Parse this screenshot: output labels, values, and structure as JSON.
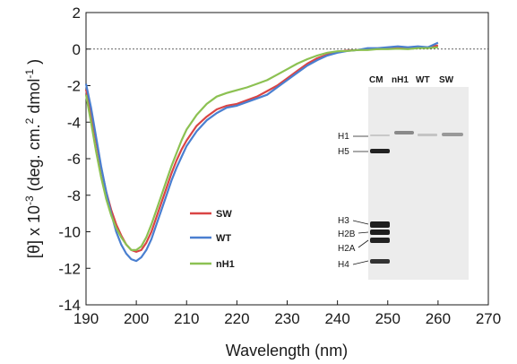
{
  "chart_data": {
    "type": "line",
    "xlabel": "Wavelength (nm)",
    "ylabel": "[θ] x 10",
    "ylabel_sup1": "-3",
    "ylabel_mid": " (deg. cm.",
    "ylabel_sup2": "2",
    "ylabel_mid2": " dmol",
    "ylabel_sup3": "-1",
    "ylabel_end": " )",
    "xlim": [
      190,
      270
    ],
    "ylim": [
      -14,
      2
    ],
    "xticks": [
      "190",
      "200",
      "210",
      "220",
      "230",
      "240",
      "250",
      "260",
      "270"
    ],
    "yticks": [
      "2",
      "0",
      "-2",
      "-4",
      "-6",
      "-8",
      "-10",
      "-12",
      "-14"
    ],
    "zero_line": 0,
    "legend": [
      {
        "name": "SW",
        "color": "#d94545"
      },
      {
        "name": "WT",
        "color": "#4a7fd0"
      },
      {
        "name": "nH1",
        "color": "#8cc152"
      }
    ],
    "series": [
      {
        "name": "SW",
        "color": "#d94545",
        "points": [
          [
            190,
            -2.2
          ],
          [
            191,
            -3.5
          ],
          [
            192,
            -5.0
          ],
          [
            193,
            -6.5
          ],
          [
            194,
            -7.8
          ],
          [
            195,
            -8.8
          ],
          [
            196,
            -9.6
          ],
          [
            197,
            -10.2
          ],
          [
            198,
            -10.7
          ],
          [
            199,
            -11.0
          ],
          [
            200,
            -11.1
          ],
          [
            201,
            -11.0
          ],
          [
            202,
            -10.6
          ],
          [
            203,
            -10.0
          ],
          [
            204,
            -9.2
          ],
          [
            205,
            -8.4
          ],
          [
            206,
            -7.6
          ],
          [
            207,
            -6.8
          ],
          [
            208,
            -6.1
          ],
          [
            209,
            -5.5
          ],
          [
            210,
            -5.0
          ],
          [
            212,
            -4.2
          ],
          [
            214,
            -3.7
          ],
          [
            216,
            -3.3
          ],
          [
            218,
            -3.1
          ],
          [
            220,
            -3.0
          ],
          [
            222,
            -2.8
          ],
          [
            224,
            -2.6
          ],
          [
            226,
            -2.3
          ],
          [
            228,
            -2.0
          ],
          [
            230,
            -1.6
          ],
          [
            232,
            -1.2
          ],
          [
            234,
            -0.8
          ],
          [
            236,
            -0.5
          ],
          [
            238,
            -0.3
          ],
          [
            240,
            -0.15
          ],
          [
            242,
            -0.08
          ],
          [
            244,
            -0.05
          ],
          [
            246,
            0.0
          ],
          [
            248,
            0.0
          ],
          [
            250,
            0.05
          ],
          [
            252,
            0.05
          ],
          [
            254,
            0.08
          ],
          [
            256,
            0.1
          ],
          [
            258,
            0.1
          ],
          [
            260,
            0.2
          ]
        ]
      },
      {
        "name": "WT",
        "color": "#4a7fd0",
        "points": [
          [
            190,
            -1.9
          ],
          [
            191,
            -3.2
          ],
          [
            192,
            -4.8
          ],
          [
            193,
            -6.4
          ],
          [
            194,
            -7.8
          ],
          [
            195,
            -9.0
          ],
          [
            196,
            -10.0
          ],
          [
            197,
            -10.7
          ],
          [
            198,
            -11.2
          ],
          [
            199,
            -11.5
          ],
          [
            200,
            -11.6
          ],
          [
            201,
            -11.4
          ],
          [
            202,
            -11.0
          ],
          [
            203,
            -10.4
          ],
          [
            204,
            -9.6
          ],
          [
            205,
            -8.8
          ],
          [
            206,
            -8.0
          ],
          [
            207,
            -7.2
          ],
          [
            208,
            -6.5
          ],
          [
            209,
            -5.9
          ],
          [
            210,
            -5.3
          ],
          [
            212,
            -4.5
          ],
          [
            214,
            -3.9
          ],
          [
            216,
            -3.5
          ],
          [
            218,
            -3.2
          ],
          [
            220,
            -3.1
          ],
          [
            222,
            -2.9
          ],
          [
            224,
            -2.7
          ],
          [
            226,
            -2.5
          ],
          [
            228,
            -2.1
          ],
          [
            230,
            -1.7
          ],
          [
            232,
            -1.3
          ],
          [
            234,
            -0.9
          ],
          [
            236,
            -0.6
          ],
          [
            238,
            -0.35
          ],
          [
            240,
            -0.2
          ],
          [
            242,
            -0.1
          ],
          [
            244,
            -0.05
          ],
          [
            246,
            0.05
          ],
          [
            248,
            0.05
          ],
          [
            250,
            0.1
          ],
          [
            252,
            0.15
          ],
          [
            254,
            0.1
          ],
          [
            256,
            0.15
          ],
          [
            258,
            0.1
          ],
          [
            260,
            0.35
          ]
        ]
      },
      {
        "name": "nH1",
        "color": "#8cc152",
        "points": [
          [
            190,
            -2.5
          ],
          [
            191,
            -4.0
          ],
          [
            192,
            -5.6
          ],
          [
            193,
            -7.0
          ],
          [
            194,
            -8.2
          ],
          [
            195,
            -9.1
          ],
          [
            196,
            -9.8
          ],
          [
            197,
            -10.3
          ],
          [
            198,
            -10.7
          ],
          [
            199,
            -11.0
          ],
          [
            200,
            -11.0
          ],
          [
            201,
            -10.8
          ],
          [
            202,
            -10.3
          ],
          [
            203,
            -9.6
          ],
          [
            204,
            -8.8
          ],
          [
            205,
            -8.0
          ],
          [
            206,
            -7.2
          ],
          [
            207,
            -6.4
          ],
          [
            208,
            -5.7
          ],
          [
            209,
            -5.0
          ],
          [
            210,
            -4.4
          ],
          [
            212,
            -3.6
          ],
          [
            214,
            -3.0
          ],
          [
            216,
            -2.6
          ],
          [
            218,
            -2.4
          ],
          [
            220,
            -2.25
          ],
          [
            222,
            -2.1
          ],
          [
            224,
            -1.9
          ],
          [
            226,
            -1.7
          ],
          [
            228,
            -1.4
          ],
          [
            230,
            -1.1
          ],
          [
            232,
            -0.8
          ],
          [
            234,
            -0.55
          ],
          [
            236,
            -0.35
          ],
          [
            238,
            -0.2
          ],
          [
            240,
            -0.12
          ],
          [
            242,
            -0.1
          ],
          [
            244,
            -0.05
          ],
          [
            246,
            -0.05
          ],
          [
            248,
            0.0
          ],
          [
            250,
            0.0
          ],
          [
            252,
            0.02
          ],
          [
            254,
            0.0
          ],
          [
            256,
            0.05
          ],
          [
            258,
            0.05
          ],
          [
            260,
            0.1
          ]
        ]
      }
    ]
  },
  "gel": {
    "lanes": [
      "CM",
      "nH1",
      "WT",
      "SW"
    ],
    "bands": [
      "H1",
      "H5",
      "H3",
      "H2B",
      "H2A",
      "H4"
    ]
  }
}
